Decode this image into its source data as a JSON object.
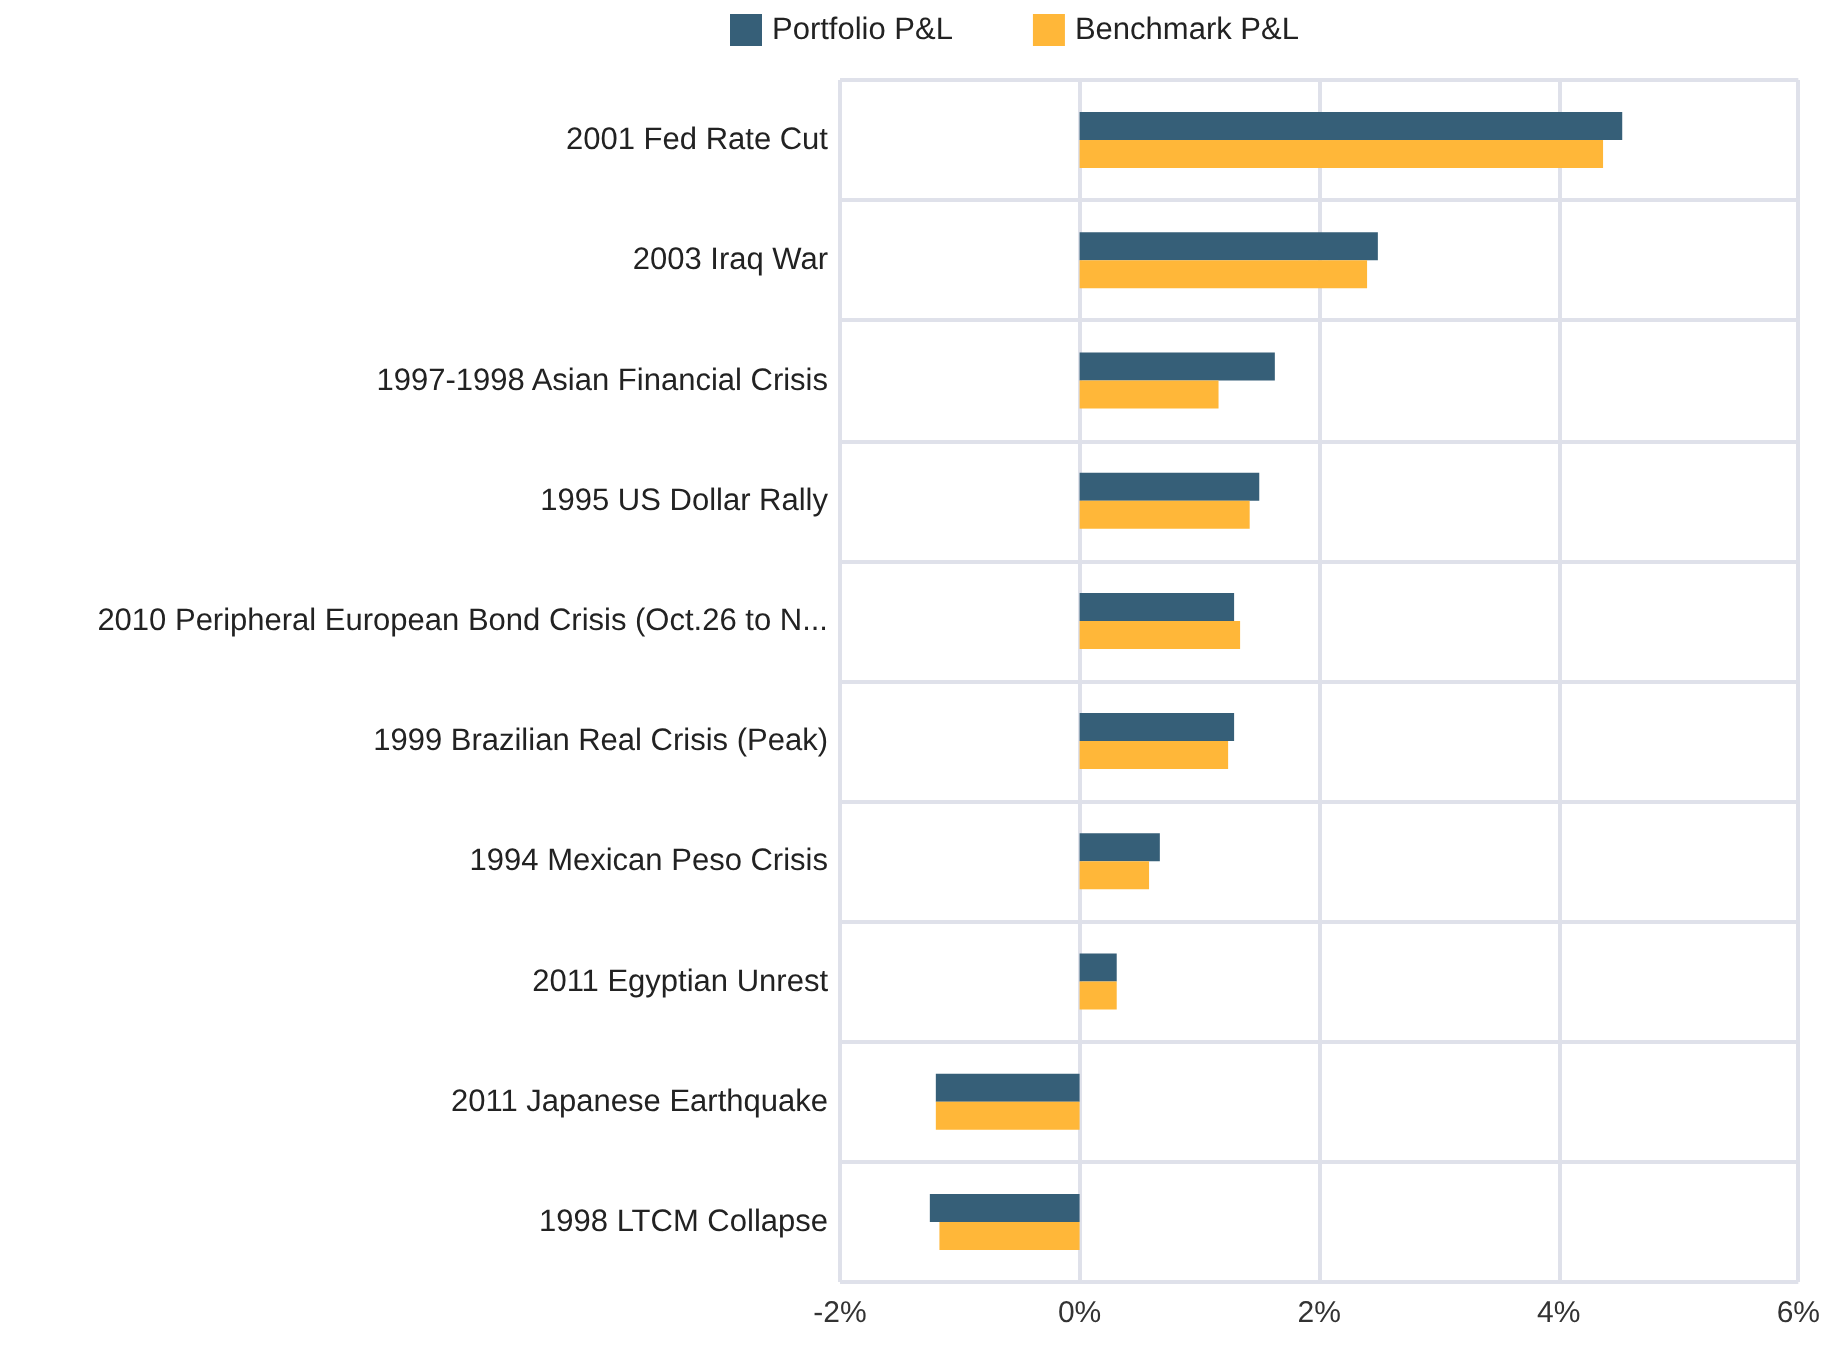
{
  "chart_data": {
    "type": "bar",
    "orientation": "horizontal",
    "categories": [
      "2001 Fed Rate Cut",
      "2003 Iraq War",
      "1997-1998 Asian Financial Crisis",
      "1995 US Dollar Rally",
      "2010 Peripheral European Bond Crisis (Oct.26 to N...",
      "1999 Brazilian Real Crisis (Peak)",
      "1994 Mexican Peso Crisis",
      "2011 Egyptian Unrest",
      "2011 Japanese Earthquake",
      "1998 LTCM Collapse"
    ],
    "series": [
      {
        "name": "Portfolio P&L",
        "color": "#365f78",
        "values": [
          4.53,
          2.49,
          1.63,
          1.5,
          1.29,
          1.29,
          0.67,
          0.31,
          -1.2,
          -1.25
        ]
      },
      {
        "name": "Benchmark P&L",
        "color": "#ffb739",
        "values": [
          4.37,
          2.4,
          1.16,
          1.42,
          1.34,
          1.24,
          0.58,
          0.31,
          -1.2,
          -1.17
        ]
      }
    ],
    "xlim": [
      -2,
      6
    ],
    "xticks": [
      {
        "value": -2,
        "label": "-2%"
      },
      {
        "value": 0,
        "label": "0%"
      },
      {
        "value": 2,
        "label": "2%"
      },
      {
        "value": 4,
        "label": "4%"
      },
      {
        "value": 6,
        "label": "6%"
      }
    ],
    "grid": true,
    "legend": "top"
  }
}
